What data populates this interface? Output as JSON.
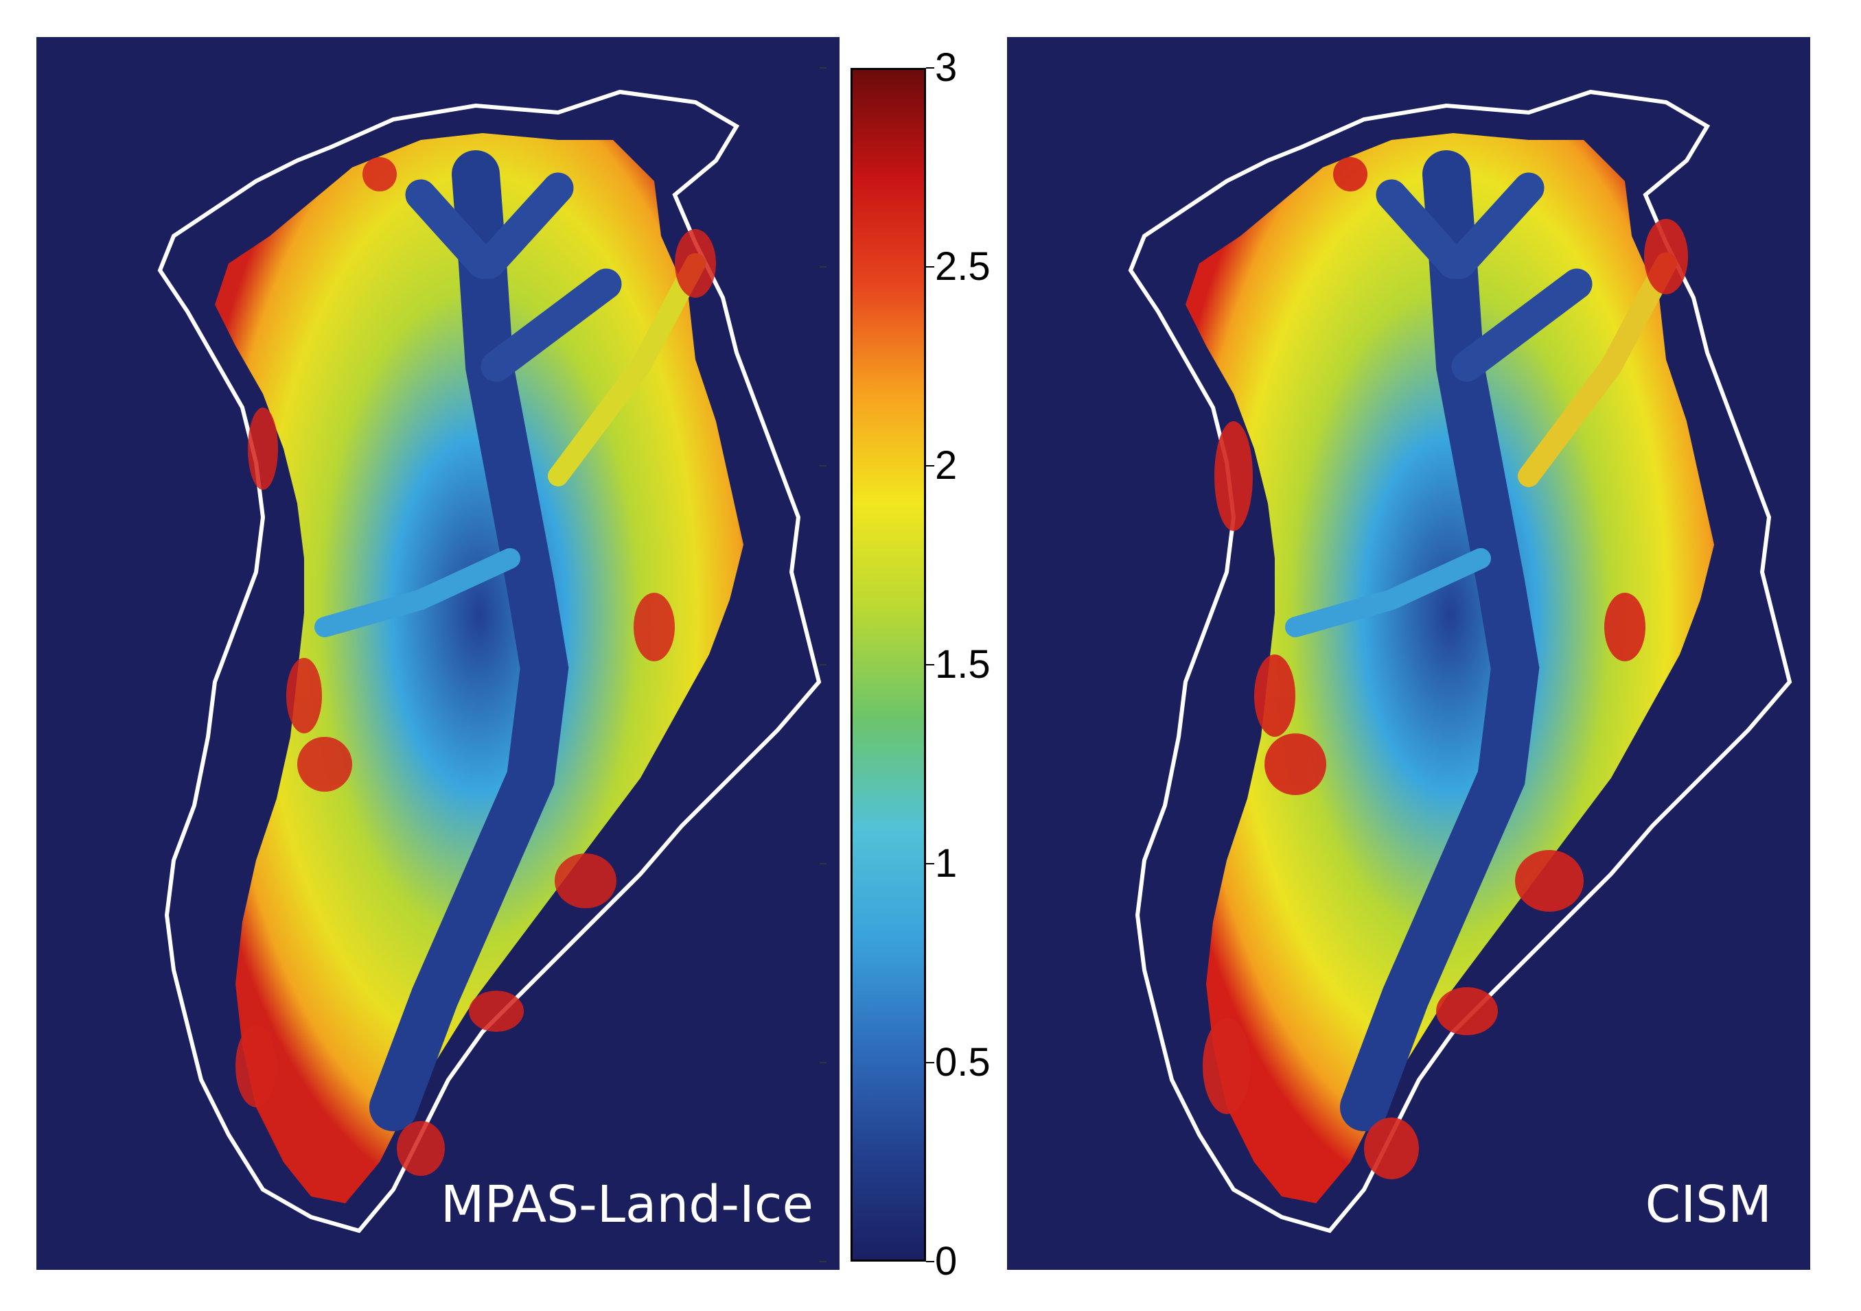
{
  "panels": [
    {
      "label": "MPAS-Land-Ice"
    },
    {
      "label": "CISM"
    }
  ],
  "colorbar": {
    "min": 0,
    "max": 3,
    "ticks": [
      "0",
      "0.5",
      "1",
      "1.5",
      "2",
      "2.5",
      "3"
    ],
    "colors": {
      "background": "#1c1f5e",
      "coastline": "#ffffff",
      "ramp": [
        "#1a1f62",
        "#23418f",
        "#2f6fbe",
        "#3ba3dc",
        "#52c2d6",
        "#6cc46a",
        "#b9d833",
        "#f2e61f",
        "#f6a21f",
        "#e7461f",
        "#c81414",
        "#6b0b0b"
      ]
    }
  }
}
